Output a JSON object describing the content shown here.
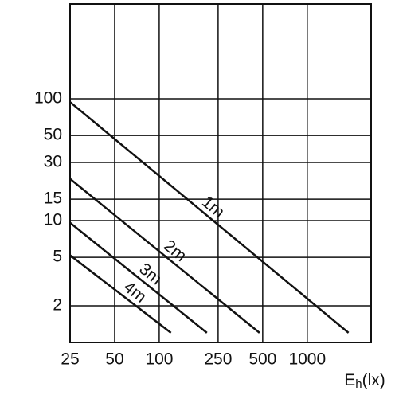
{
  "chart_data": {
    "type": "line",
    "log_x": true,
    "log_y": true,
    "grid": true,
    "x_label": {
      "main": "E",
      "sub": "h",
      "unit": "(lx)"
    },
    "xlim": [
      25,
      2700
    ],
    "xticks": [
      25,
      50,
      100,
      250,
      500,
      1000
    ],
    "ylim": [
      1,
      600
    ],
    "yticks": [
      2,
      5,
      10,
      15,
      30,
      50,
      100
    ],
    "series": [
      {
        "name": "1m",
        "color": "#111111",
        "x": [
          25,
          1900
        ],
        "values": [
          94,
          1.2
        ]
      },
      {
        "name": "2m",
        "color": "#111111",
        "x": [
          25,
          476
        ],
        "values": [
          22,
          1.2
        ]
      },
      {
        "name": "3m",
        "color": "#111111",
        "x": [
          25,
          210
        ],
        "values": [
          9.6,
          1.2
        ]
      },
      {
        "name": "4m",
        "color": "#111111",
        "x": [
          25,
          120
        ],
        "values": [
          5.2,
          1.2
        ]
      }
    ]
  }
}
